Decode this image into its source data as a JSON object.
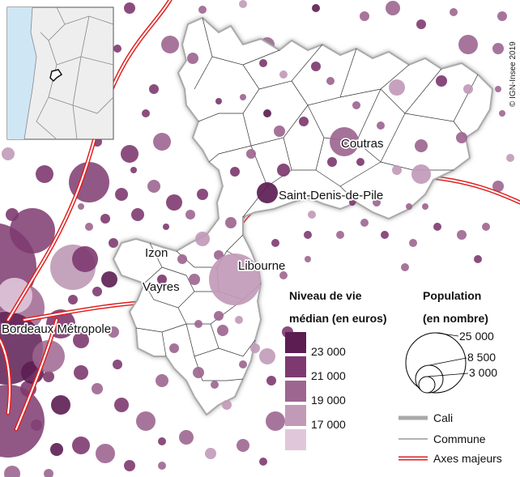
{
  "credit": "© IGN-Insee 2019",
  "places": {
    "coutras": "Coutras",
    "saint_denis": "Saint-Denis-de-Pile",
    "libourne": "Libourne",
    "izon": "Izon",
    "vayres": "Vayres",
    "bordeaux": "Bordeaux Métropole"
  },
  "legend_level": {
    "title_line1": "Niveau de vie",
    "title_line2": "médian (en euros)",
    "classes": [
      {
        "label": "23 000",
        "color": "#5c1d52"
      },
      {
        "label": "21 000",
        "color": "#7e3a70"
      },
      {
        "label": "19 000",
        "color": "#9d6690"
      },
      {
        "label": "17 000",
        "color": "#c19ab8"
      },
      {
        "label": "",
        "color": "#e0c8da"
      }
    ]
  },
  "legend_population": {
    "title_line1": "Population",
    "title_line2": "(en nombre)",
    "values": [
      "25 000",
      "8 500",
      "3 000"
    ]
  },
  "legend_lines": {
    "cali": "Cali",
    "commune": "Commune",
    "axes": "Axes majeurs"
  },
  "colors": {
    "road": "#e02020",
    "cali_outline": "#aaaaaa",
    "inset_sea": "#cfe6f5",
    "inset_land": "#eeeeee"
  }
}
